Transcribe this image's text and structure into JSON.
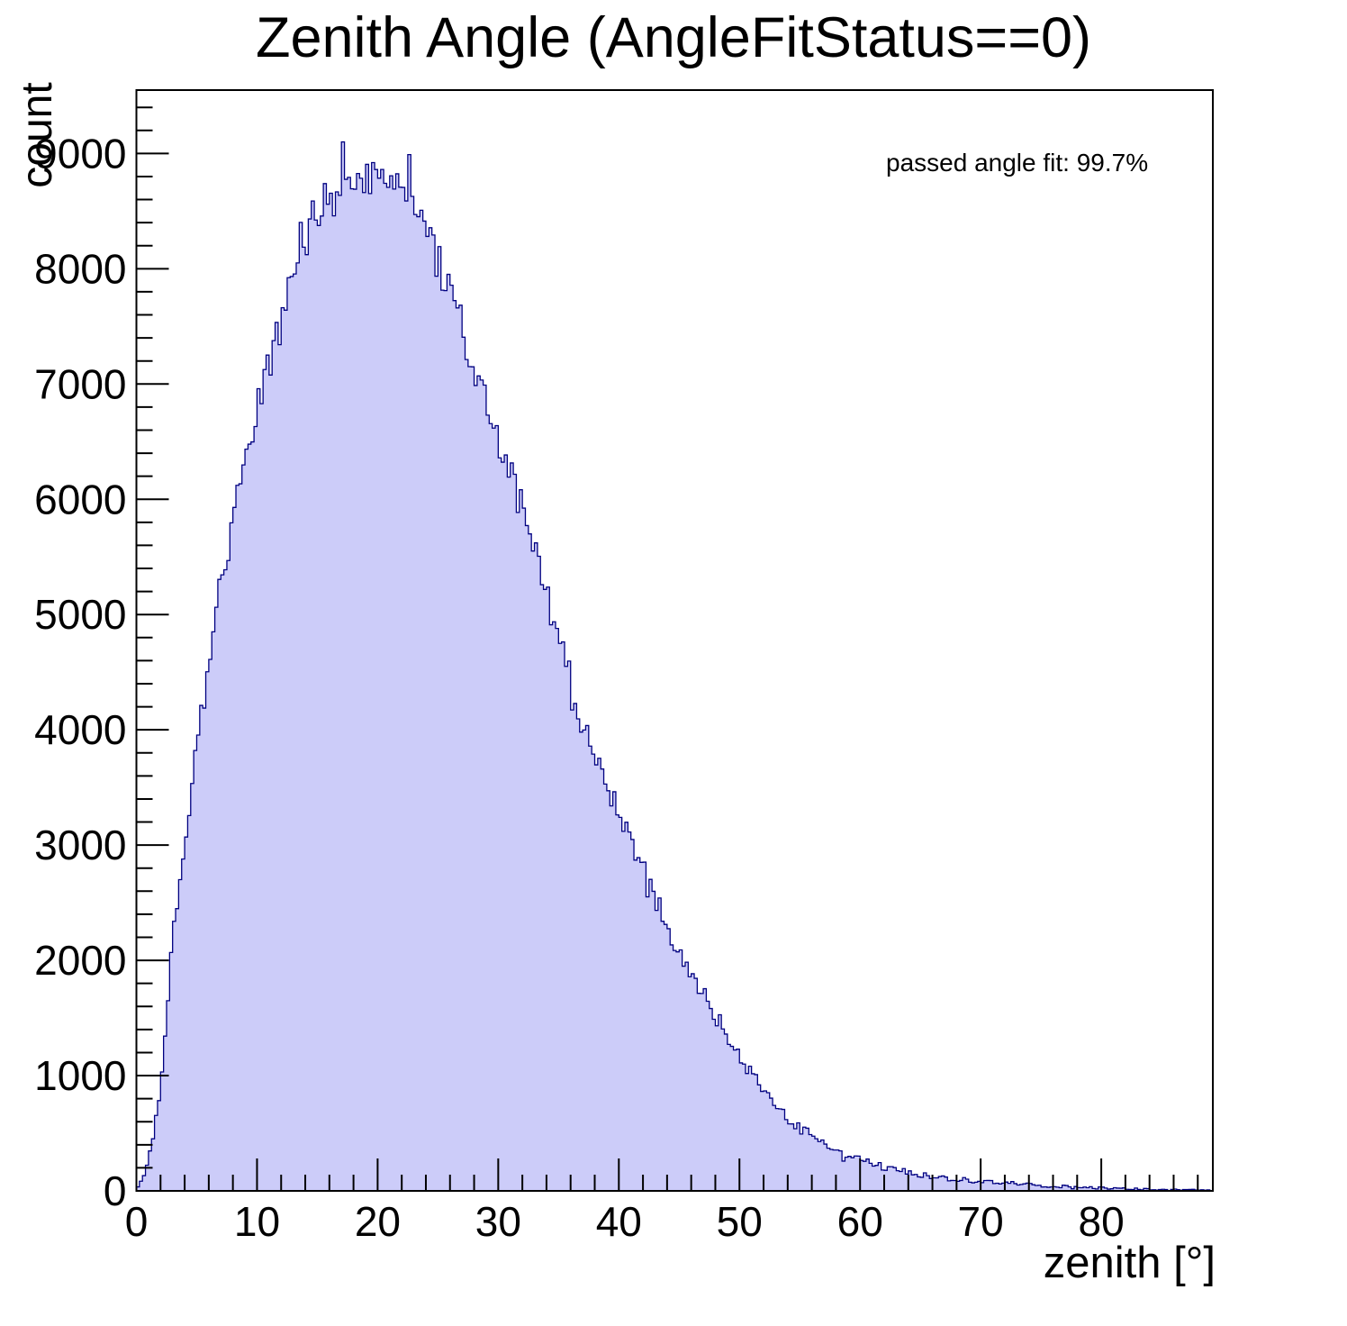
{
  "page": {
    "background": "#ffffff"
  },
  "chart_data": {
    "type": "bar",
    "subtype": "histogram",
    "title": "Zenith Angle (AngleFitStatus==0)",
    "xlabel": "zenith [°]",
    "ylabel": "count",
    "annotation": "passed angle fit: 99.7%",
    "xlim": [
      0,
      89.25
    ],
    "ylim": [
      0,
      9550
    ],
    "bin_width": 0.25,
    "grid": false,
    "legend_position": "none",
    "x_major_ticks": [
      0,
      10,
      20,
      30,
      40,
      50,
      60,
      70,
      80
    ],
    "x_minor_step": 2,
    "y_major_ticks": [
      0,
      1000,
      2000,
      3000,
      4000,
      5000,
      6000,
      7000,
      8000,
      9000
    ],
    "y_minor_step": 200,
    "colors": {
      "fill": "#ccccf9",
      "line": "#000080",
      "axis": "#000000",
      "text": "#000000"
    },
    "envelope_x_step": 1,
    "envelope_counts": [
      10,
      230,
      900,
      2150,
      3050,
      3850,
      4600,
      5250,
      5800,
      6300,
      6750,
      7150,
      7500,
      7900,
      8250,
      8500,
      8650,
      8750,
      8800,
      8820,
      8780,
      8700,
      8650,
      8520,
      8300,
      8050,
      7800,
      7500,
      7150,
      6850,
      6550,
      6250,
      5900,
      5550,
      5200,
      4800,
      4450,
      4050,
      3750,
      3500,
      3300,
      3050,
      2800,
      2550,
      2300,
      2100,
      1900,
      1700,
      1500,
      1320,
      1160,
      1010,
      870,
      750,
      640,
      550,
      470,
      400,
      340,
      300,
      265,
      235,
      205,
      180,
      160,
      140,
      125,
      110,
      100,
      90,
      82,
      74,
      66,
      59,
      52,
      46,
      41,
      37,
      33,
      28,
      24,
      21,
      18,
      16,
      14,
      12,
      10,
      9,
      7,
      4
    ],
    "peak_bins": [
      {
        "x": 17.1,
        "count": 9100
      },
      {
        "x": 22.6,
        "count": 8990
      }
    ]
  }
}
